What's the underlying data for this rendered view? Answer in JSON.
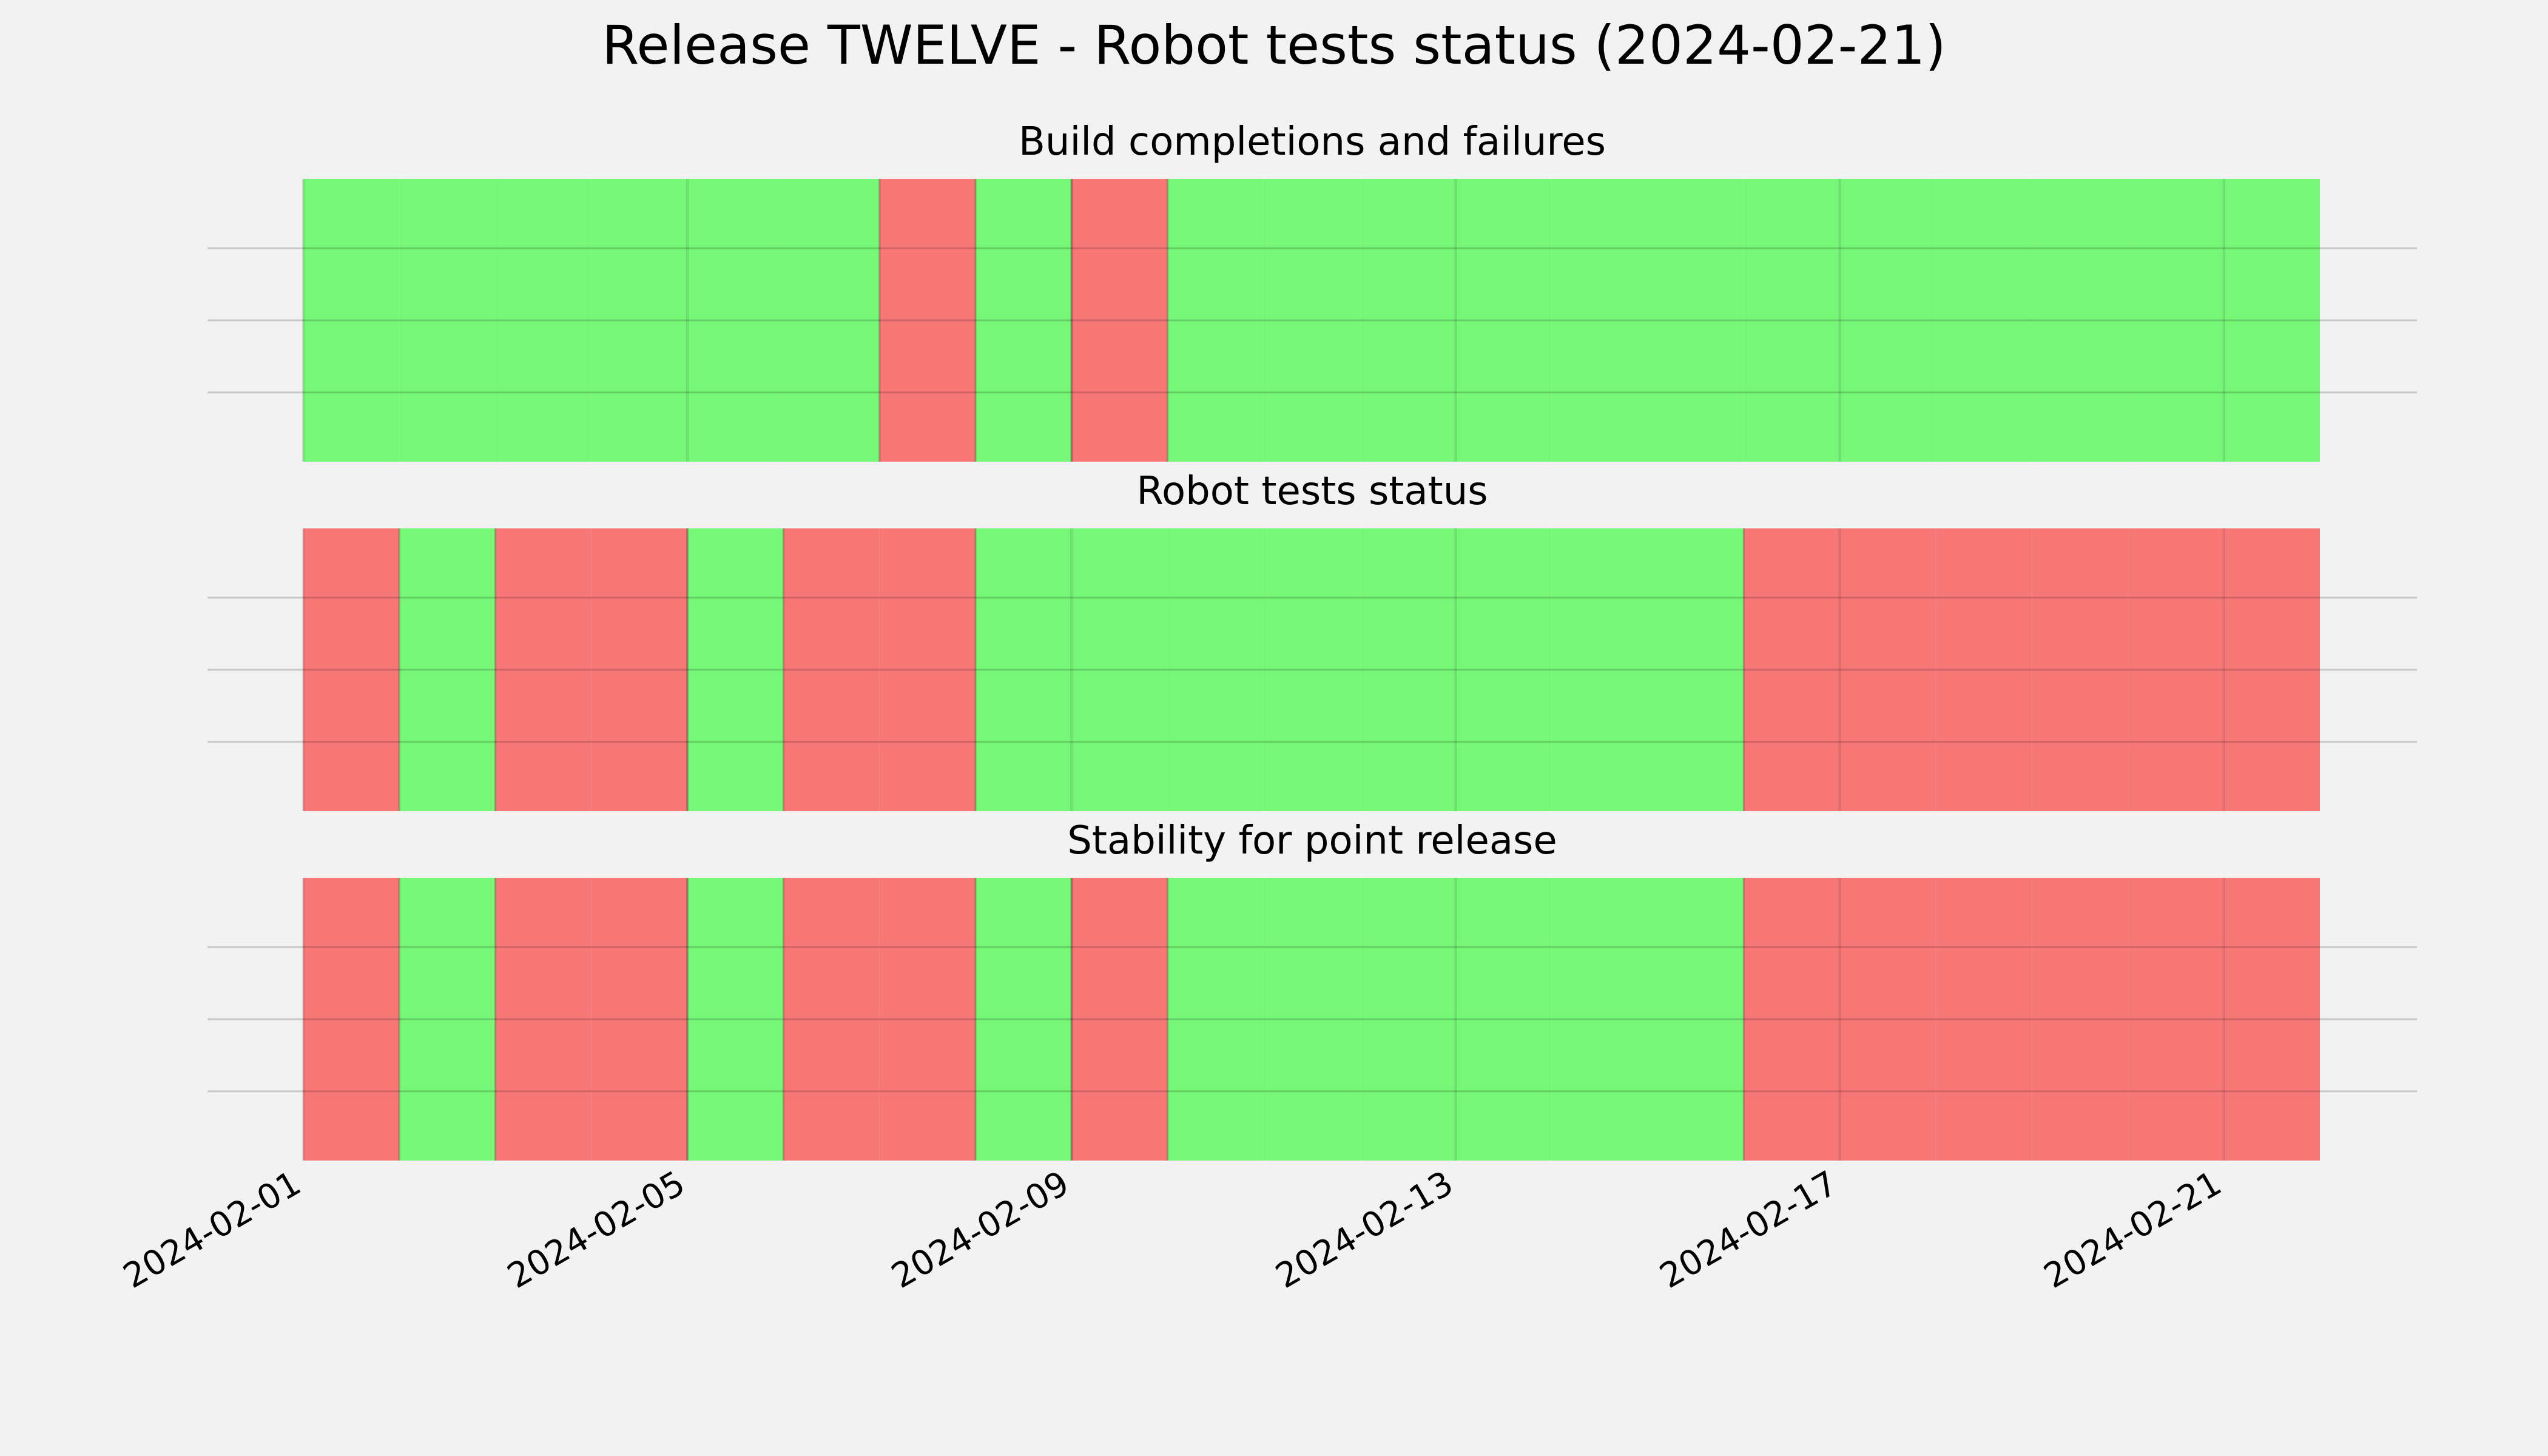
{
  "chart_data": {
    "type": "timeline",
    "title": "Release TWELVE - Robot tests status (2024-02-21)",
    "x_axis": {
      "type": "date",
      "range": [
        "2024-02-01",
        "2024-02-22"
      ],
      "tick_labels": [
        "2024-02-01",
        "2024-02-05",
        "2024-02-09",
        "2024-02-13",
        "2024-02-17",
        "2024-02-21"
      ],
      "tick_rotation_deg": 30,
      "grid": true
    },
    "y_axis": {
      "tick_labels": [],
      "grid": true
    },
    "status_colors": {
      "pass": "#77f777",
      "fail": "#f77777"
    },
    "panels": [
      {
        "title": "Build completions and failures",
        "days": [
          "2024-02-01",
          "2024-02-02",
          "2024-02-03",
          "2024-02-04",
          "2024-02-05",
          "2024-02-06",
          "2024-02-07",
          "2024-02-08",
          "2024-02-09",
          "2024-02-10",
          "2024-02-11",
          "2024-02-12",
          "2024-02-13",
          "2024-02-14",
          "2024-02-15",
          "2024-02-16",
          "2024-02-17",
          "2024-02-18",
          "2024-02-19",
          "2024-02-20",
          "2024-02-21"
        ],
        "status": [
          "pass",
          "pass",
          "pass",
          "pass",
          "pass",
          "pass",
          "fail",
          "pass",
          "fail",
          "pass",
          "pass",
          "pass",
          "pass",
          "pass",
          "pass",
          "pass",
          "pass",
          "pass",
          "pass",
          "pass",
          "pass"
        ]
      },
      {
        "title": "Robot tests status",
        "days": [
          "2024-02-01",
          "2024-02-02",
          "2024-02-03",
          "2024-02-04",
          "2024-02-05",
          "2024-02-06",
          "2024-02-07",
          "2024-02-08",
          "2024-02-09",
          "2024-02-10",
          "2024-02-11",
          "2024-02-12",
          "2024-02-13",
          "2024-02-14",
          "2024-02-15",
          "2024-02-16",
          "2024-02-17",
          "2024-02-18",
          "2024-02-19",
          "2024-02-20",
          "2024-02-21"
        ],
        "status": [
          "fail",
          "pass",
          "fail",
          "fail",
          "pass",
          "fail",
          "fail",
          "pass",
          "pass",
          "pass",
          "pass",
          "pass",
          "pass",
          "pass",
          "pass",
          "fail",
          "fail",
          "fail",
          "fail",
          "fail",
          "fail"
        ]
      },
      {
        "title": "Stability for point release",
        "days": [
          "2024-02-01",
          "2024-02-02",
          "2024-02-03",
          "2024-02-04",
          "2024-02-05",
          "2024-02-06",
          "2024-02-07",
          "2024-02-08",
          "2024-02-09",
          "2024-02-10",
          "2024-02-11",
          "2024-02-12",
          "2024-02-13",
          "2024-02-14",
          "2024-02-15",
          "2024-02-16",
          "2024-02-17",
          "2024-02-18",
          "2024-02-19",
          "2024-02-20",
          "2024-02-21"
        ],
        "status": [
          "fail",
          "pass",
          "fail",
          "fail",
          "pass",
          "fail",
          "fail",
          "pass",
          "fail",
          "pass",
          "pass",
          "pass",
          "pass",
          "pass",
          "pass",
          "fail",
          "fail",
          "fail",
          "fail",
          "fail",
          "fail"
        ]
      }
    ]
  }
}
